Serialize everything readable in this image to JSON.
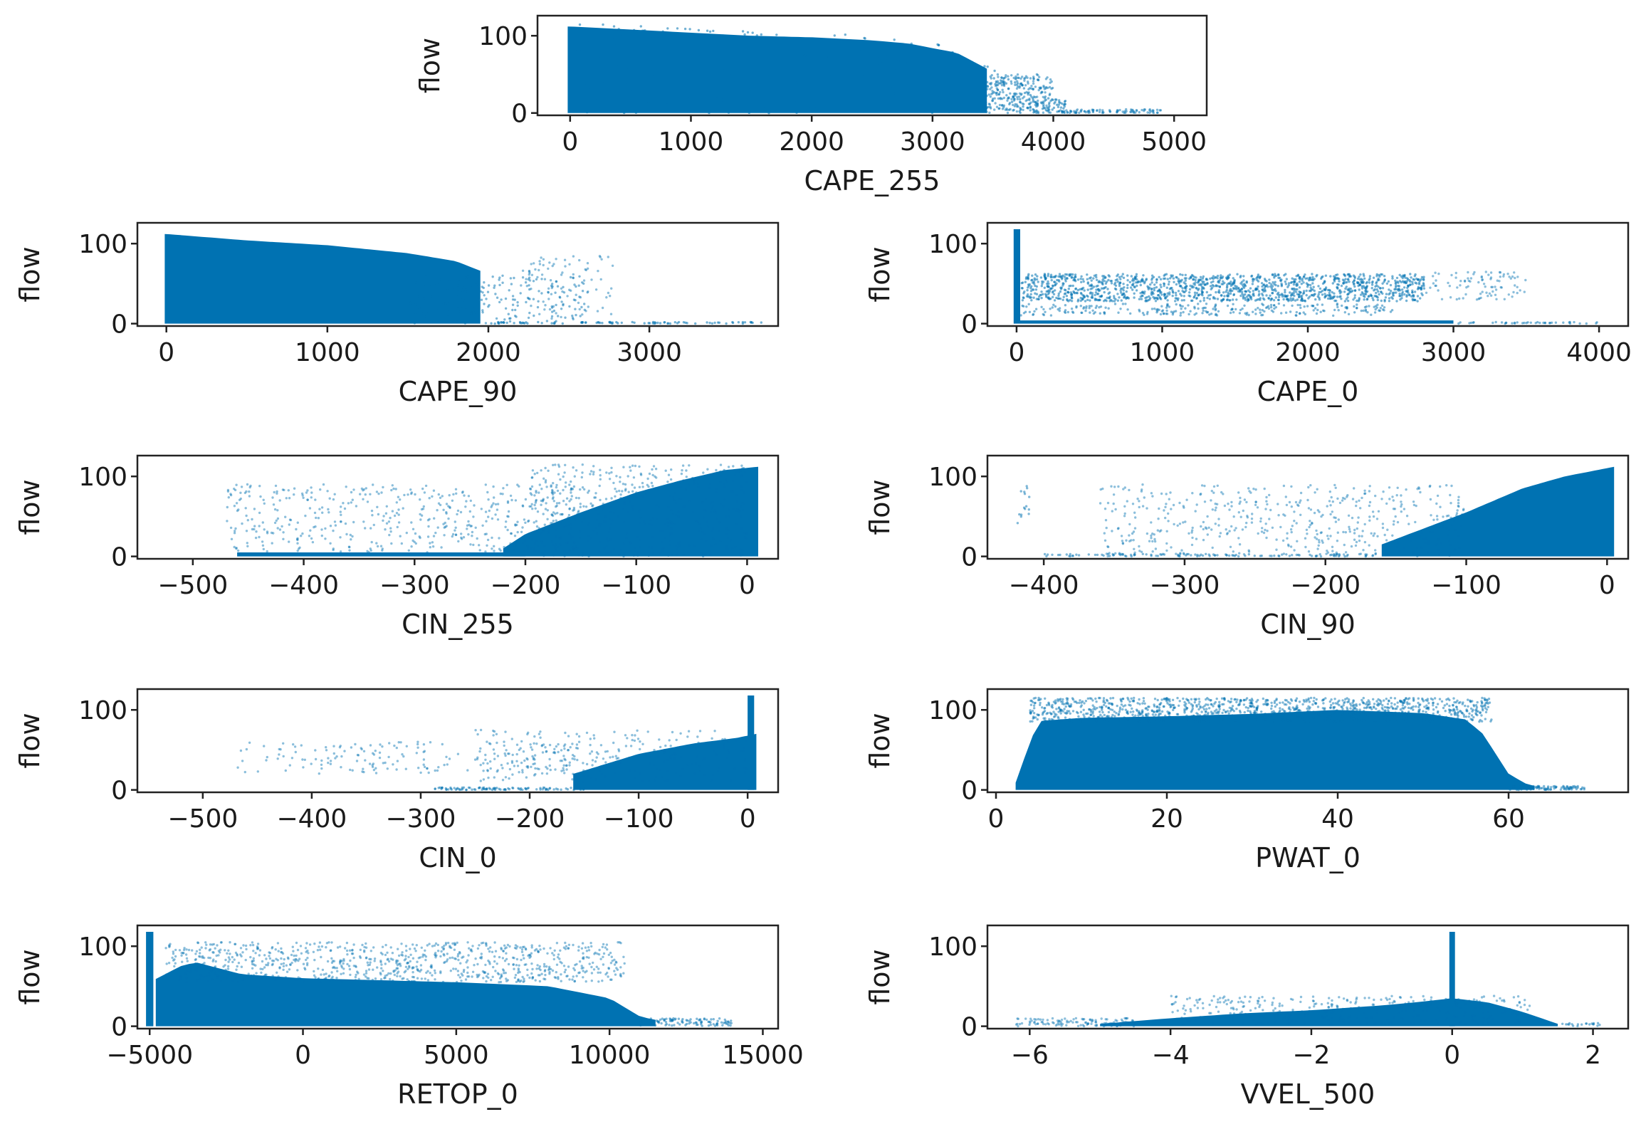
{
  "chart_data": [
    {
      "id": "cape255",
      "type": "scatter",
      "xlabel": "CAPE_255",
      "ylabel": "flow",
      "xlim": [
        -270,
        5270
      ],
      "ylim": [
        -3,
        126
      ],
      "xticks": [
        0,
        1000,
        2000,
        3000,
        4000,
        5000
      ],
      "yticks": [
        0,
        100
      ],
      "xtick_labels": [
        "0",
        "1000",
        "2000",
        "3000",
        "4000",
        "5000"
      ],
      "ytick_labels": [
        "0",
        "100"
      ],
      "color": "#0072b2",
      "envelope": {
        "x": [
          0,
          500,
          1000,
          1500,
          2000,
          2500,
          2800,
          3200,
          3600,
          4000,
          4300,
          4900
        ],
        "ymax": [
          112,
          108,
          104,
          100,
          98,
          94,
          90,
          78,
          45,
          12,
          5,
          2
        ],
        "ymin": 0
      },
      "features": [
        {
          "kind": "fill",
          "x0": -20,
          "x1": 3450,
          "y0": 0,
          "top": "envelope",
          "opacity": 1
        },
        {
          "kind": "cloud",
          "x0": 0,
          "x1": 4100,
          "y0": 0,
          "top": "envelope",
          "n": 700,
          "opacity": 0.55
        },
        {
          "kind": "cloud",
          "x0": 3400,
          "x1": 4000,
          "y0": 0,
          "y1": 50,
          "n": 250,
          "opacity": 0.5
        },
        {
          "kind": "cloud",
          "x0": 4000,
          "x1": 4900,
          "y0": 0,
          "y1": 5,
          "n": 90,
          "opacity": 0.5
        }
      ]
    },
    {
      "id": "cape90",
      "type": "scatter",
      "xlabel": "CAPE_90",
      "ylabel": "flow",
      "xlim": [
        -180,
        3800
      ],
      "ylim": [
        -3,
        126
      ],
      "xticks": [
        0,
        1000,
        2000,
        3000
      ],
      "yticks": [
        0,
        100
      ],
      "xtick_labels": [
        "0",
        "1000",
        "2000",
        "3000"
      ],
      "ytick_labels": [
        "0",
        "100"
      ],
      "color": "#0072b2",
      "envelope": {
        "x": [
          0,
          500,
          1000,
          1500,
          1800,
          2000,
          2200
        ],
        "ymax": [
          112,
          104,
          98,
          88,
          78,
          62,
          40
        ],
        "ymin": 0
      },
      "features": [
        {
          "kind": "fill",
          "x0": -10,
          "x1": 1950,
          "y0": 0,
          "top": "envelope",
          "opacity": 1
        },
        {
          "kind": "cloud",
          "x0": 1500,
          "x1": 2600,
          "y0": 0,
          "y1": 60,
          "n": 200,
          "opacity": 0.5
        },
        {
          "kind": "cloud",
          "x0": 2200,
          "x1": 2800,
          "y0": 5,
          "y1": 85,
          "n": 90,
          "opacity": 0.45
        },
        {
          "kind": "cloud",
          "x0": 2000,
          "x1": 3700,
          "y0": 0,
          "y1": 2,
          "n": 90,
          "opacity": 0.55
        }
      ]
    },
    {
      "id": "cape0",
      "type": "scatter",
      "xlabel": "CAPE_0",
      "ylabel": "flow",
      "xlim": [
        -200,
        4200
      ],
      "ylim": [
        -3,
        126
      ],
      "xticks": [
        0,
        1000,
        2000,
        3000,
        4000
      ],
      "yticks": [
        0,
        100
      ],
      "xtick_labels": [
        "0",
        "1000",
        "2000",
        "3000",
        "4000"
      ],
      "ytick_labels": [
        "0",
        "100"
      ],
      "color": "#0072b2",
      "features": [
        {
          "kind": "fill",
          "x0": -20,
          "x1": 25,
          "y0": 0,
          "y1": 118,
          "opacity": 1
        },
        {
          "kind": "fill",
          "x0": 25,
          "x1": 3000,
          "y0": 0,
          "y1": 4,
          "opacity": 1
        },
        {
          "kind": "cloud",
          "x0": 30,
          "x1": 2800,
          "y0": 28,
          "y1": 62,
          "n": 1400,
          "opacity": 0.55
        },
        {
          "kind": "cloud",
          "x0": 30,
          "x1": 2600,
          "y0": 10,
          "y1": 25,
          "n": 250,
          "opacity": 0.5
        },
        {
          "kind": "cloud",
          "x0": 2800,
          "x1": 3500,
          "y0": 30,
          "y1": 65,
          "n": 90,
          "opacity": 0.45
        },
        {
          "kind": "cloud",
          "x0": 3000,
          "x1": 4000,
          "y0": 0,
          "y1": 2,
          "n": 40,
          "opacity": 0.5
        }
      ]
    },
    {
      "id": "cin255",
      "type": "scatter",
      "xlabel": "CIN_255",
      "ylabel": "flow",
      "xlim": [
        -550,
        28
      ],
      "ylim": [
        -3,
        126
      ],
      "xticks": [
        -500,
        -400,
        -300,
        -200,
        -100,
        0
      ],
      "yticks": [
        0,
        100
      ],
      "xtick_labels": [
        "−500",
        "−400",
        "−300",
        "−200",
        "−100",
        "0"
      ],
      "ytick_labels": [
        "0",
        "100"
      ],
      "color": "#0072b2",
      "envelope": {
        "x": [
          -220,
          -200,
          -150,
          -100,
          -60,
          -20,
          10
        ],
        "ymax": [
          10,
          28,
          55,
          80,
          95,
          108,
          112
        ],
        "ymin": 0
      },
      "features": [
        {
          "kind": "fill",
          "x0": -220,
          "x1": 10,
          "y0": 0,
          "top": "envelope",
          "opacity": 1
        },
        {
          "kind": "fill",
          "x0": -460,
          "x1": -200,
          "y0": 0,
          "y1": 5,
          "opacity": 1
        },
        {
          "kind": "cloud",
          "x0": -470,
          "x1": -150,
          "y0": 5,
          "y1": 90,
          "n": 500,
          "opacity": 0.45
        },
        {
          "kind": "cloud",
          "x0": -200,
          "x1": 0,
          "y0": 0,
          "y1": 115,
          "n": 500,
          "opacity": 0.45
        }
      ]
    },
    {
      "id": "cin90",
      "type": "scatter",
      "xlabel": "CIN_90",
      "ylabel": "flow",
      "xlim": [
        -440,
        15
      ],
      "ylim": [
        -3,
        126
      ],
      "xticks": [
        -400,
        -300,
        -200,
        -100,
        0
      ],
      "yticks": [
        0,
        100
      ],
      "xtick_labels": [
        "−400",
        "−300",
        "−200",
        "−100",
        "0"
      ],
      "ytick_labels": [
        "0",
        "100"
      ],
      "color": "#0072b2",
      "envelope": {
        "x": [
          -160,
          -100,
          -60,
          -30,
          5
        ],
        "ymax": [
          15,
          55,
          85,
          100,
          112
        ],
        "ymin": 0
      },
      "features": [
        {
          "kind": "fill",
          "x0": -160,
          "x1": 5,
          "y0": 0,
          "top": "envelope",
          "opacity": 1
        },
        {
          "kind": "cloud",
          "x0": -360,
          "x1": -100,
          "y0": 0,
          "y1": 90,
          "n": 500,
          "opacity": 0.45
        },
        {
          "kind": "cloud",
          "x0": -400,
          "x1": -150,
          "y0": 0,
          "y1": 3,
          "n": 120,
          "opacity": 0.5
        },
        {
          "kind": "cloud",
          "x0": -420,
          "x1": -410,
          "y0": 40,
          "y1": 90,
          "n": 15,
          "opacity": 0.5
        }
      ]
    },
    {
      "id": "cin0",
      "type": "scatter",
      "xlabel": "CIN_0",
      "ylabel": "flow",
      "xlim": [
        -560,
        28
      ],
      "ylim": [
        -3,
        126
      ],
      "xticks": [
        -500,
        -400,
        -300,
        -200,
        -100,
        0
      ],
      "yticks": [
        0,
        100
      ],
      "xtick_labels": [
        "−500",
        "−400",
        "−300",
        "−200",
        "−100",
        "0"
      ],
      "ytick_labels": [
        "0",
        "100"
      ],
      "color": "#0072b2",
      "envelope": {
        "x": [
          -160,
          -100,
          -50,
          -10,
          8
        ],
        "ymax": [
          20,
          45,
          58,
          65,
          70
        ],
        "ymin": 0
      },
      "features": [
        {
          "kind": "fill",
          "x0": -160,
          "x1": 8,
          "y0": 0,
          "top": "envelope",
          "opacity": 1
        },
        {
          "kind": "fill",
          "x0": 0,
          "x1": 6,
          "y0": 0,
          "y1": 118,
          "opacity": 1
        },
        {
          "kind": "cloud",
          "x0": -470,
          "x1": -150,
          "y0": 20,
          "y1": 60,
          "n": 180,
          "opacity": 0.45
        },
        {
          "kind": "cloud",
          "x0": -300,
          "x1": -150,
          "y0": 0,
          "y1": 3,
          "n": 100,
          "opacity": 0.5
        },
        {
          "kind": "cloud",
          "x0": -250,
          "x1": 0,
          "y0": 10,
          "y1": 75,
          "n": 250,
          "opacity": 0.45
        }
      ]
    },
    {
      "id": "pwat0",
      "type": "scatter",
      "xlabel": "PWAT_0",
      "ylabel": "flow",
      "xlim": [
        -1,
        74
      ],
      "ylim": [
        -3,
        126
      ],
      "xticks": [
        0,
        20,
        40,
        60
      ],
      "yticks": [
        0,
        100
      ],
      "xtick_labels": [
        "0",
        "20",
        "40",
        "60"
      ],
      "ytick_labels": [
        "0",
        "100"
      ],
      "color": "#0072b2",
      "envelope": {
        "x": [
          2,
          4,
          5,
          10,
          20,
          30,
          40,
          50,
          55,
          57,
          60,
          62,
          64
        ],
        "ymax": [
          0,
          60,
          86,
          90,
          92,
          95,
          100,
          96,
          88,
          70,
          20,
          8,
          2
        ],
        "ymin": 0
      },
      "features": [
        {
          "kind": "fill",
          "x0": 2.3,
          "x1": 63,
          "y0": 0,
          "top": "envelope",
          "opacity": 1
        },
        {
          "kind": "cloud",
          "x0": 4,
          "x1": 58,
          "y0": 85,
          "y1": 115,
          "n": 1200,
          "opacity": 0.5
        },
        {
          "kind": "cloud",
          "x0": 60,
          "x1": 69,
          "y0": 0,
          "y1": 5,
          "n": 90,
          "opacity": 0.5
        }
      ]
    },
    {
      "id": "retop0",
      "type": "scatter",
      "xlabel": "RETOP_0",
      "ylabel": "flow",
      "xlim": [
        -5400,
        15500
      ],
      "ylim": [
        -3,
        126
      ],
      "xticks": [
        -5000,
        0,
        5000,
        10000,
        15000
      ],
      "yticks": [
        0,
        100
      ],
      "xtick_labels": [
        "−5000",
        "0",
        "5000",
        "10000",
        "15000"
      ],
      "ytick_labels": [
        "0",
        "100"
      ],
      "color": "#0072b2",
      "envelope": {
        "x": [
          -5000,
          -4000,
          -3500,
          -2000,
          0,
          2000,
          5000,
          8000,
          10000,
          11000,
          12000
        ],
        "ymax": [
          55,
          75,
          80,
          65,
          60,
          58,
          55,
          50,
          35,
          12,
          4
        ],
        "ymin": 0
      },
      "features": [
        {
          "kind": "fill",
          "x0": -4800,
          "x1": 11500,
          "y0": 0,
          "top": "envelope",
          "opacity": 1
        },
        {
          "kind": "fill",
          "x0": -5120,
          "x1": -4880,
          "y0": 0,
          "y1": 118,
          "opacity": 1
        },
        {
          "kind": "cloud",
          "x0": -4500,
          "x1": 10500,
          "y0": 55,
          "y1": 105,
          "n": 900,
          "opacity": 0.45
        },
        {
          "kind": "cloud",
          "x0": 11000,
          "x1": 14000,
          "y0": 0,
          "y1": 10,
          "n": 100,
          "opacity": 0.5
        }
      ]
    },
    {
      "id": "vvel500",
      "type": "scatter",
      "xlabel": "VVEL_500",
      "ylabel": "flow",
      "xlim": [
        -6.6,
        2.5
      ],
      "ylim": [
        -3,
        126
      ],
      "xticks": [
        -6,
        -4,
        -2,
        0,
        2
      ],
      "yticks": [
        0,
        100
      ],
      "xtick_labels": [
        "−6",
        "−4",
        "−2",
        "0",
        "2"
      ],
      "ytick_labels": [
        "0",
        "100"
      ],
      "color": "#0072b2",
      "envelope": {
        "x": [
          -5,
          -4,
          -3,
          -2,
          -1,
          -0.5,
          0,
          0.5,
          1,
          1.5
        ],
        "ymax": [
          3,
          10,
          16,
          20,
          26,
          30,
          35,
          30,
          18,
          3
        ],
        "ymin": 0
      },
      "features": [
        {
          "kind": "fill",
          "x0": -5,
          "x1": 1.5,
          "y0": 0,
          "top": "envelope",
          "opacity": 1
        },
        {
          "kind": "fill",
          "x0": -0.04,
          "x1": 0.04,
          "y0": 0,
          "y1": 118,
          "opacity": 1
        },
        {
          "kind": "cloud",
          "x0": -6.2,
          "x1": -4.5,
          "y0": 0,
          "y1": 10,
          "n": 120,
          "opacity": 0.45
        },
        {
          "kind": "cloud",
          "x0": -4,
          "x1": 1.2,
          "y0": 2,
          "y1": 38,
          "n": 350,
          "opacity": 0.45
        },
        {
          "kind": "cloud",
          "x0": 1.5,
          "x1": 2.1,
          "y0": 0,
          "y1": 4,
          "n": 20,
          "opacity": 0.5
        }
      ]
    }
  ]
}
